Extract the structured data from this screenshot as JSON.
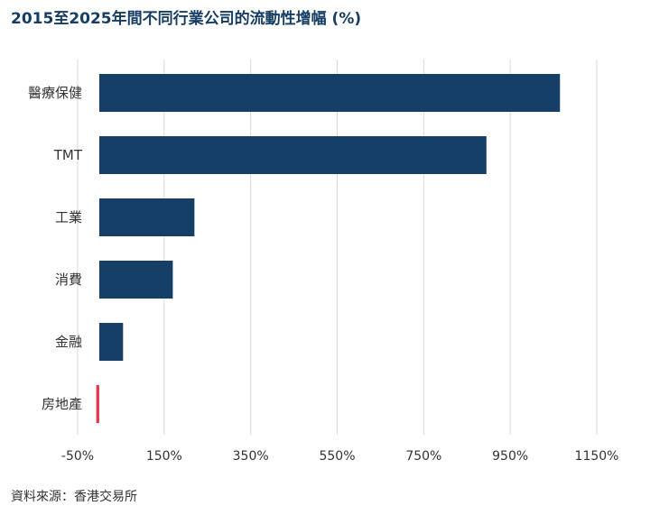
{
  "chart_data": {
    "type": "bar",
    "orientation": "horizontal",
    "title": "2015至2025年間不同行業公司的流動性增幅 (%)",
    "categories": [
      "醫療保健",
      "TMT",
      "工業",
      "消費",
      "金融",
      "房地產"
    ],
    "values": [
      1065,
      895,
      220,
      170,
      55,
      -7
    ],
    "xlim": [
      -50,
      1150
    ],
    "xticks": [
      -50,
      150,
      350,
      550,
      750,
      950,
      1150
    ],
    "xtick_labels": [
      "-50%",
      "150%",
      "350%",
      "550%",
      "750%",
      "950%",
      "1150%"
    ],
    "grid": "vertical",
    "colors": {
      "positive": "#163f68",
      "negative": "#e03a4e",
      "grid": "#d9d9d9",
      "label": "#333333"
    }
  },
  "source": "資料來源：香港交易所"
}
